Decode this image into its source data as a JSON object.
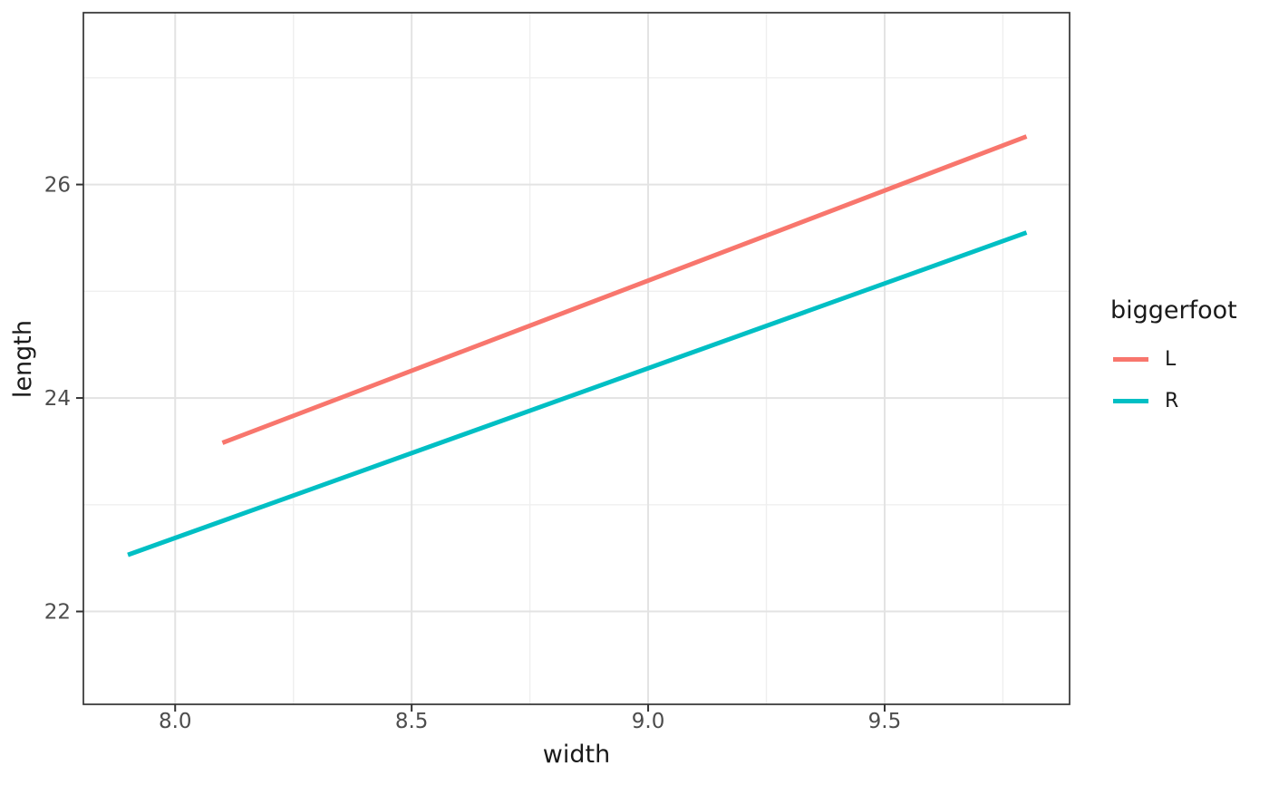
{
  "chart_data": {
    "type": "line",
    "title": "",
    "xlabel": "width",
    "ylabel": "length",
    "legend_title": "biggerfoot",
    "legend_position": "right",
    "grid": true,
    "x_domain": [
      7.806,
      9.891
    ],
    "y_domain": [
      21.13,
      27.61
    ],
    "x_major_ticks": [
      8.0,
      8.5,
      9.0,
      9.5
    ],
    "x_tick_labels": [
      "8.0",
      "8.5",
      "9.0",
      "9.5"
    ],
    "x_minor_ticks": [
      8.25,
      8.75,
      9.25,
      9.75
    ],
    "y_major_ticks": [
      22,
      24,
      26
    ],
    "y_tick_labels": [
      "22",
      "24",
      "26"
    ],
    "y_minor_ticks": [
      23,
      25,
      27
    ],
    "series": [
      {
        "name": "L",
        "color": "#F8766D",
        "points": [
          [
            8.1,
            23.58
          ],
          [
            9.8,
            26.45
          ]
        ]
      },
      {
        "name": "R",
        "color": "#00BFC4",
        "points": [
          [
            7.9,
            22.53
          ],
          [
            9.8,
            25.55
          ]
        ]
      }
    ],
    "style": {
      "panel_background": "#ffffff",
      "panel_border_color": "#333333",
      "grid_major_color": "#e3e3e3",
      "grid_minor_color": "#efefef",
      "tick_mark_color": "#333333",
      "tick_label_color": "#4d4d4d",
      "title_text_color": "#1a1a1a"
    }
  }
}
